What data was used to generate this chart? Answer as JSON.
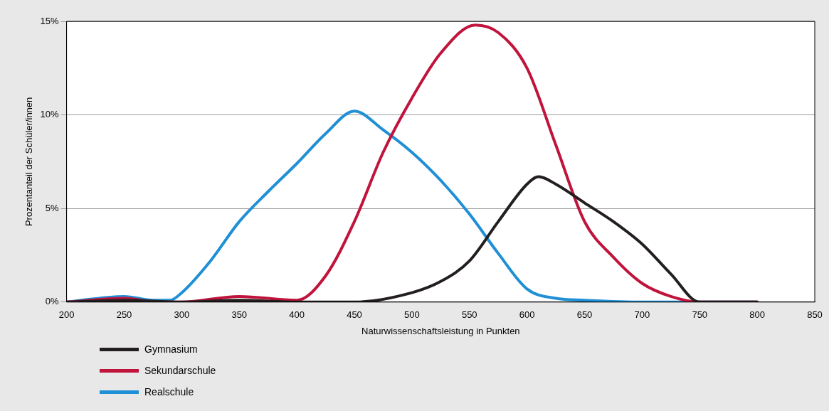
{
  "chart_data": {
    "type": "line",
    "xlabel": "Naturwissenschaftsleistung in Punkten",
    "ylabel": "Prozentanteil der Schüler/innen",
    "xlim": [
      200,
      850
    ],
    "xticks": [
      200,
      250,
      300,
      350,
      400,
      450,
      500,
      550,
      600,
      650,
      700,
      750,
      800,
      850
    ],
    "ylim": [
      0,
      15
    ],
    "yticks": [
      {
        "value": 0,
        "label": "0%"
      },
      {
        "value": 5,
        "label": "5%"
      },
      {
        "value": 10,
        "label": "10%"
      },
      {
        "value": 15,
        "label": "15%"
      }
    ],
    "grid": "y",
    "legend": "bottom left",
    "marker": "none",
    "line_style": "solid",
    "series": [
      {
        "name": "Gymnasium",
        "color": "#231f20",
        "x": [
          200,
          250,
          300,
          350,
          400,
          450,
          500,
          525,
          550,
          575,
          600,
          610,
          625,
          650,
          675,
          700,
          725,
          750,
          800
        ],
        "values": [
          0,
          0.1,
          0,
          0.1,
          0,
          0,
          0.5,
          1.1,
          2.2,
          4.3,
          6.3,
          6.7,
          6.3,
          5.3,
          4.3,
          3.1,
          1.5,
          0,
          0
        ]
      },
      {
        "name": "Sekundarschule",
        "color": "#c0143c",
        "x": [
          200,
          250,
          280,
          300,
          350,
          400,
          425,
          450,
          475,
          500,
          525,
          555,
          575,
          600,
          625,
          650,
          675,
          700,
          725,
          750,
          800
        ],
        "values": [
          0,
          0.2,
          0,
          0,
          0.3,
          0.1,
          1.4,
          4.3,
          8,
          10.9,
          13.3,
          14.8,
          14.4,
          12.5,
          8.4,
          4.3,
          2.4,
          1,
          0.3,
          0,
          0
        ]
      },
      {
        "name": "Realschule",
        "color": "#1f8fd6",
        "x": [
          200,
          250,
          275,
          290,
          300,
          325,
          350,
          375,
          400,
          425,
          450,
          475,
          500,
          525,
          550,
          575,
          600,
          625,
          650,
          700,
          800
        ],
        "values": [
          0,
          0.3,
          0.1,
          0.1,
          0.5,
          2.2,
          4.3,
          5.9,
          7.4,
          9,
          10.2,
          9.2,
          8,
          6.5,
          4.7,
          2.6,
          0.7,
          0.2,
          0.1,
          0,
          0
        ]
      }
    ]
  }
}
